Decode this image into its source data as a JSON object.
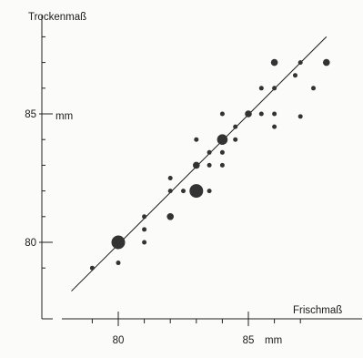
{
  "chart_data": {
    "type": "scatter",
    "title": "",
    "xlabel": "Frischmaß",
    "ylabel": "Trockenmaß",
    "x_unit": "mm",
    "y_unit": "mm",
    "xlim": [
      77.5,
      88.5
    ],
    "ylim": [
      77.5,
      89.5
    ],
    "x_ticks": [
      {
        "value": 80,
        "label": "80"
      },
      {
        "value": 85,
        "label": "85"
      }
    ],
    "y_ticks": [
      {
        "value": 80,
        "label": "80"
      },
      {
        "value": 85,
        "label": "85"
      }
    ],
    "x_minor_ticks": [
      79,
      81,
      82,
      83,
      84,
      86,
      87
    ],
    "y_minor_ticks": [
      79,
      81,
      82,
      83,
      84,
      86,
      87,
      88
    ],
    "grid": false,
    "legend": "none",
    "point_size_note": "marker size reflects number of coinciding specimens",
    "points": [
      {
        "x": 79.0,
        "y": 79.0,
        "n": 1
      },
      {
        "x": 80.0,
        "y": 79.2,
        "n": 1
      },
      {
        "x": 80.0,
        "y": 80.0,
        "n": 4
      },
      {
        "x": 81.0,
        "y": 80.0,
        "n": 1
      },
      {
        "x": 81.0,
        "y": 80.5,
        "n": 1
      },
      {
        "x": 81.0,
        "y": 81.0,
        "n": 1
      },
      {
        "x": 82.0,
        "y": 81.0,
        "n": 2
      },
      {
        "x": 82.0,
        "y": 82.0,
        "n": 1
      },
      {
        "x": 82.0,
        "y": 82.5,
        "n": 1
      },
      {
        "x": 82.5,
        "y": 82.0,
        "n": 1
      },
      {
        "x": 83.0,
        "y": 82.0,
        "n": 4
      },
      {
        "x": 83.0,
        "y": 83.0,
        "n": 2
      },
      {
        "x": 83.0,
        "y": 84.0,
        "n": 1
      },
      {
        "x": 83.5,
        "y": 82.0,
        "n": 1
      },
      {
        "x": 83.5,
        "y": 83.0,
        "n": 1
      },
      {
        "x": 83.5,
        "y": 83.5,
        "n": 1
      },
      {
        "x": 84.0,
        "y": 83.0,
        "n": 1
      },
      {
        "x": 84.0,
        "y": 83.5,
        "n": 1
      },
      {
        "x": 84.0,
        "y": 84.0,
        "n": 3
      },
      {
        "x": 84.0,
        "y": 85.0,
        "n": 1
      },
      {
        "x": 84.5,
        "y": 84.0,
        "n": 1
      },
      {
        "x": 84.5,
        "y": 84.5,
        "n": 1
      },
      {
        "x": 85.0,
        "y": 85.0,
        "n": 2
      },
      {
        "x": 85.5,
        "y": 85.0,
        "n": 1
      },
      {
        "x": 85.5,
        "y": 86.0,
        "n": 1
      },
      {
        "x": 86.0,
        "y": 84.5,
        "n": 1
      },
      {
        "x": 86.0,
        "y": 85.0,
        "n": 1
      },
      {
        "x": 86.0,
        "y": 86.0,
        "n": 1
      },
      {
        "x": 86.0,
        "y": 87.0,
        "n": 2
      },
      {
        "x": 86.8,
        "y": 86.5,
        "n": 1
      },
      {
        "x": 87.0,
        "y": 84.9,
        "n": 1
      },
      {
        "x": 87.0,
        "y": 87.0,
        "n": 1
      },
      {
        "x": 87.5,
        "y": 86.0,
        "n": 1
      },
      {
        "x": 88.0,
        "y": 87.0,
        "n": 2
      }
    ],
    "fit_line": {
      "x": [
        78.2,
        88.0
      ],
      "y": [
        78.1,
        88.0
      ]
    },
    "colors": {
      "marker": "#333333",
      "line": "#1a1a1a",
      "axis": "#222222"
    }
  }
}
